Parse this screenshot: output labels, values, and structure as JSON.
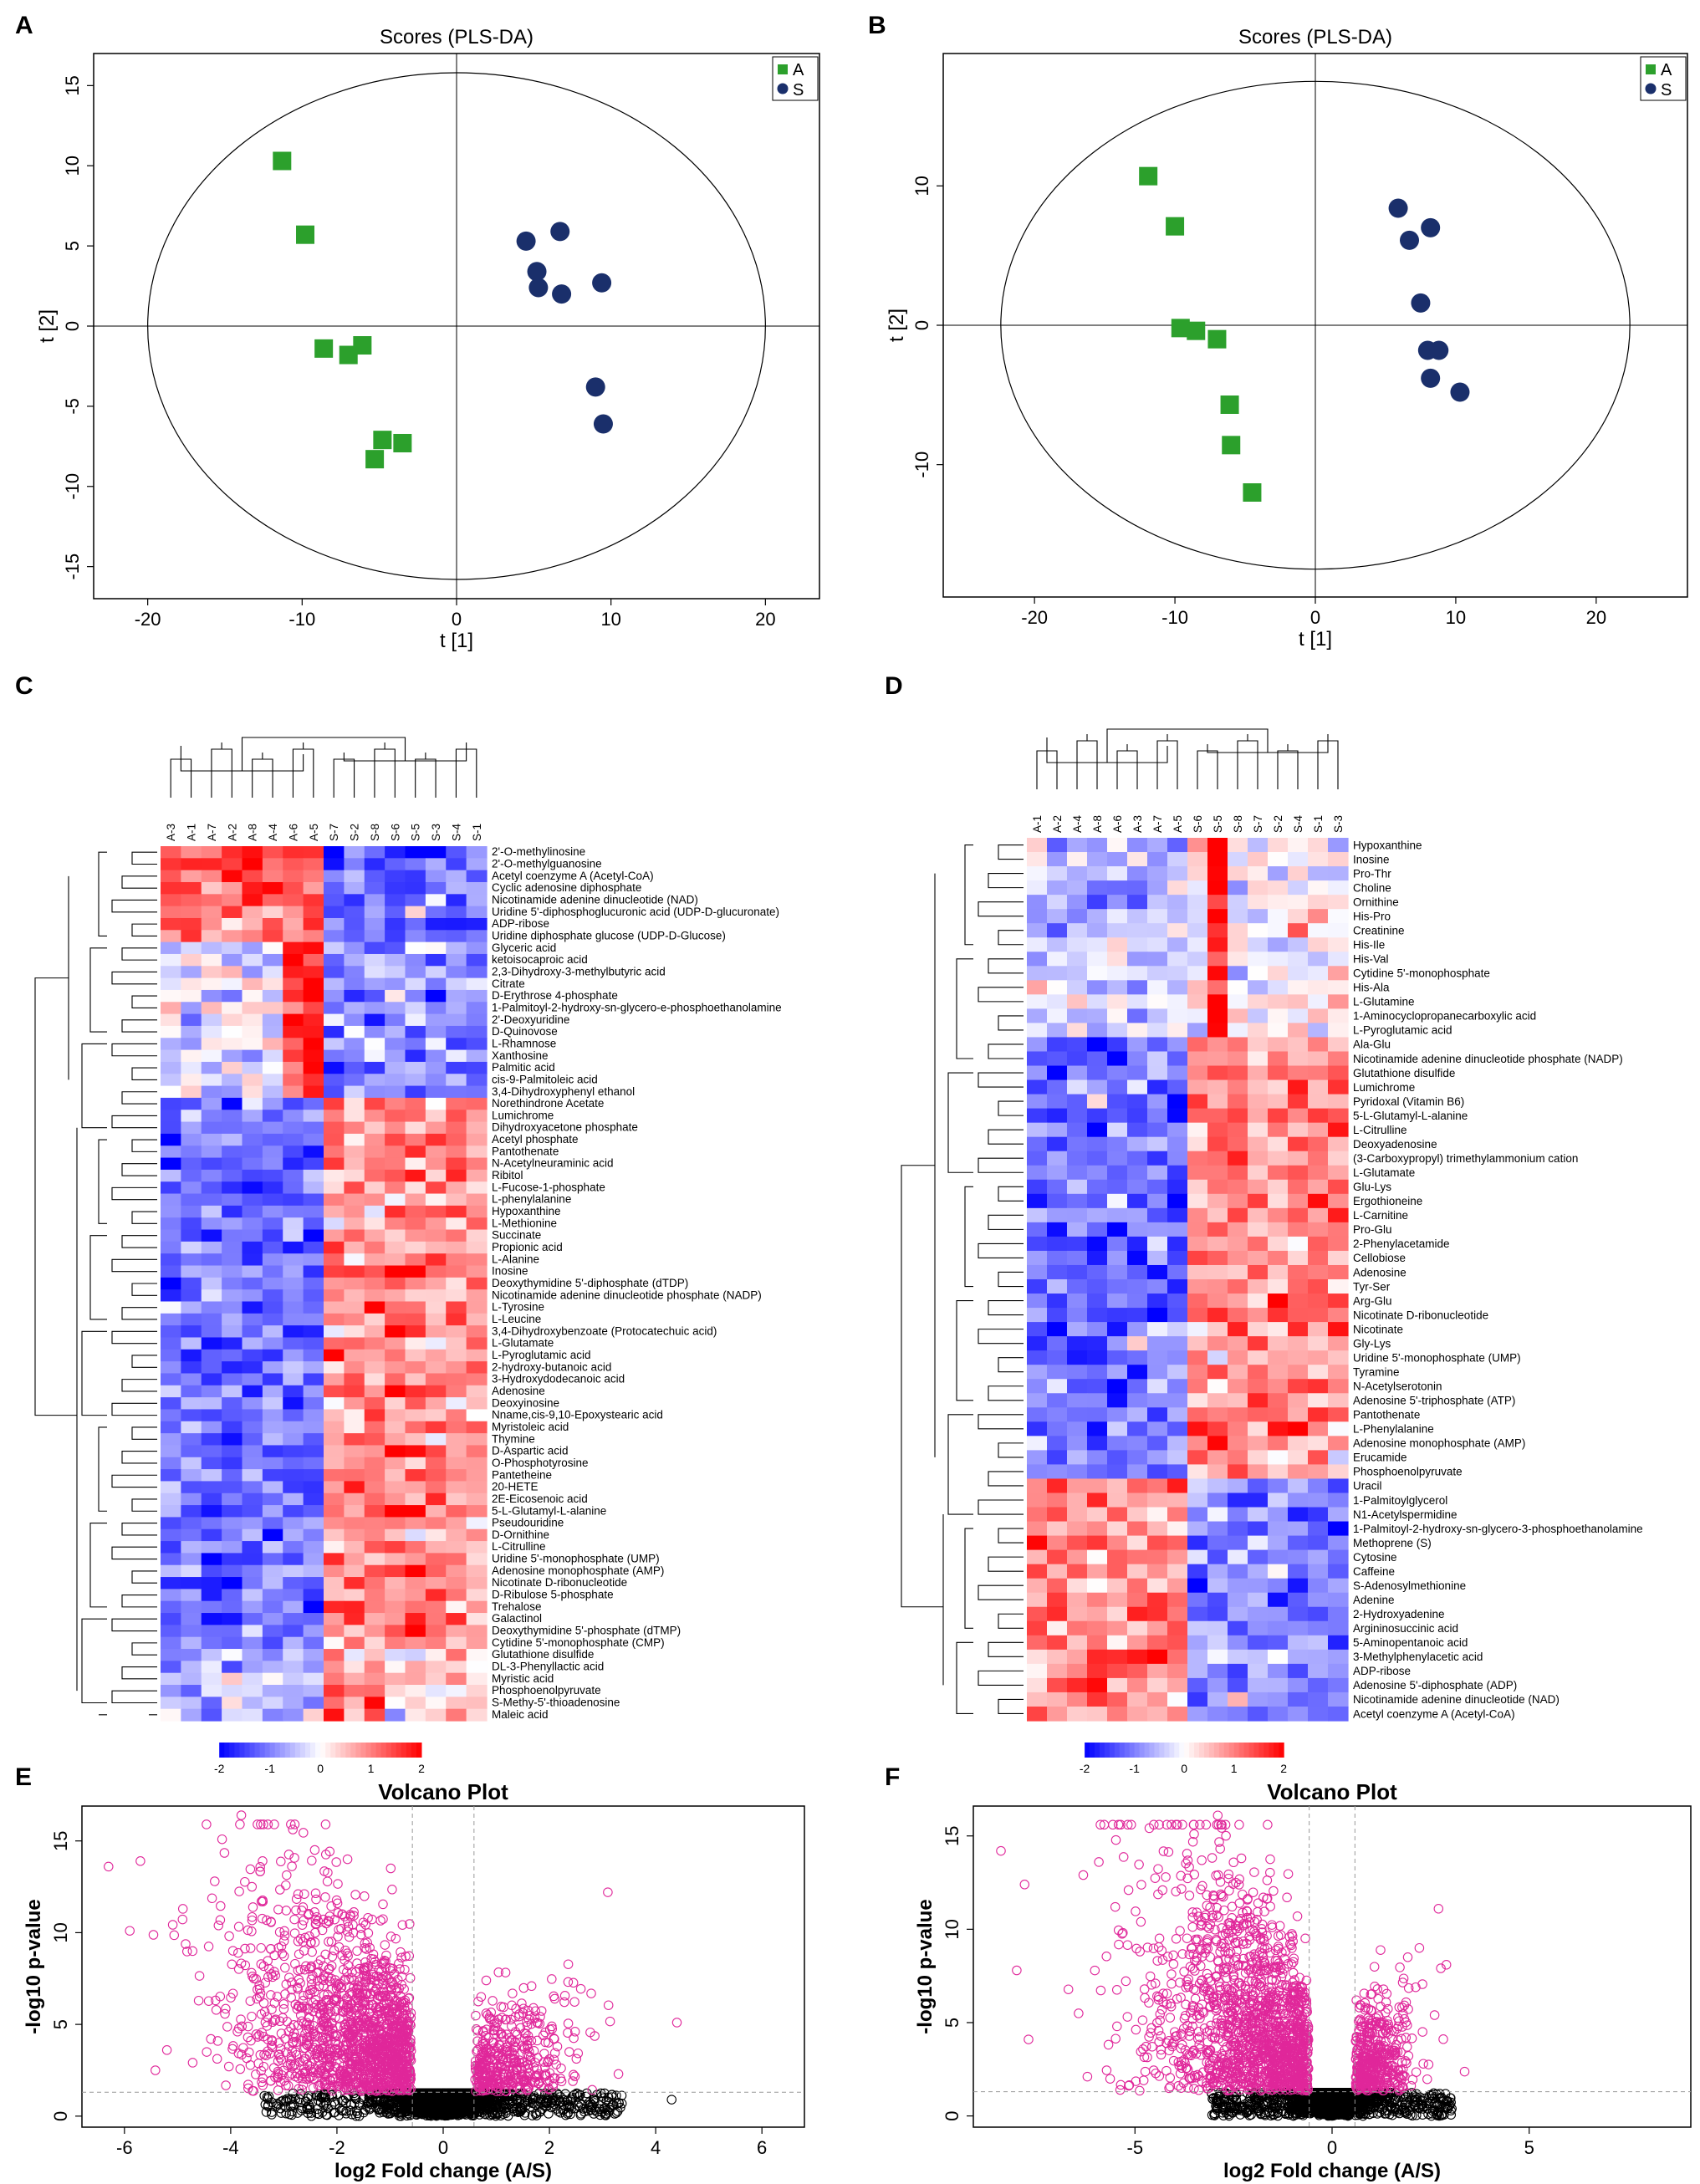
{
  "panels": {
    "A": {
      "letter": "A"
    },
    "B": {
      "letter": "B"
    },
    "C": {
      "letter": "C"
    },
    "D": {
      "letter": "D"
    },
    "E": {
      "letter": "E"
    },
    "F": {
      "letter": "F"
    }
  },
  "colors": {
    "groupA": "#2ca02c",
    "groupS": "#1a2f6b",
    "heat_low": "#0000ff",
    "heat_mid": "#ffffff",
    "heat_high": "#ff0000",
    "volcano_sig": "#e0279a",
    "volcano_ns": "#000000"
  },
  "chart_data": [
    {
      "id": "A",
      "type": "scatter",
      "title": "Scores (PLS-DA)",
      "xlabel": "t [1]",
      "ylabel": "t [2]",
      "xlim": [
        -23.5,
        23.5
      ],
      "ylim": [
        -17,
        17
      ],
      "xticks": [
        -20,
        -10,
        0,
        10,
        20
      ],
      "yticks": [
        -15,
        -10,
        -5,
        0,
        5,
        10,
        15
      ],
      "legend": [
        "A",
        "S"
      ],
      "ellipse": {
        "rx": 20,
        "ry": 15.8
      },
      "series": [
        {
          "name": "A",
          "marker": "square",
          "points": [
            [
              -11.3,
              10.3
            ],
            [
              -9.8,
              5.7
            ],
            [
              -8.6,
              -1.4
            ],
            [
              -7,
              -1.8
            ],
            [
              -6.1,
              -1.2
            ],
            [
              -4.8,
              -7.1
            ],
            [
              -3.5,
              -7.3
            ],
            [
              -5.3,
              -8.3
            ]
          ]
        },
        {
          "name": "S",
          "marker": "circle",
          "points": [
            [
              4.5,
              5.3
            ],
            [
              6.7,
              5.9
            ],
            [
              5.2,
              3.4
            ],
            [
              5.3,
              2.4
            ],
            [
              6.8,
              2
            ],
            [
              9.4,
              2.7
            ],
            [
              9,
              -3.8
            ],
            [
              9.5,
              -6.1
            ]
          ]
        }
      ]
    },
    {
      "id": "B",
      "type": "scatter",
      "title": "Scores (PLS-DA)",
      "xlabel": "t [1]",
      "ylabel": "t [2]",
      "xlim": [
        -26.5,
        26.5
      ],
      "ylim": [
        -19.5,
        19.5
      ],
      "xticks": [
        -20,
        -10,
        0,
        10,
        20
      ],
      "yticks": [
        -10,
        0,
        10
      ],
      "legend": [
        "A",
        "S"
      ],
      "ellipse": {
        "rx": 22.4,
        "ry": 17.5
      },
      "series": [
        {
          "name": "A",
          "marker": "square",
          "points": [
            [
              -11.9,
              10.7
            ],
            [
              -10,
              7.1
            ],
            [
              -9.6,
              -0.2
            ],
            [
              -8.5,
              -0.4
            ],
            [
              -7,
              -1
            ],
            [
              -6.1,
              -5.7
            ],
            [
              -6,
              -8.6
            ],
            [
              -4.5,
              -12
            ]
          ]
        },
        {
          "name": "S",
          "marker": "circle",
          "points": [
            [
              5.9,
              8.4
            ],
            [
              6.7,
              6.1
            ],
            [
              8.2,
              7
            ],
            [
              7.5,
              1.6
            ],
            [
              8,
              -1.8
            ],
            [
              8.8,
              -1.8
            ],
            [
              8.2,
              -3.8
            ],
            [
              10.3,
              -4.8
            ]
          ]
        }
      ]
    },
    {
      "id": "C",
      "type": "heatmap",
      "columns": [
        "A-3",
        "A-1",
        "A-7",
        "A-2",
        "A-8",
        "A-4",
        "A-6",
        "A-5",
        "S-7",
        "S-2",
        "S-8",
        "S-6",
        "S-5",
        "S-3",
        "S-4",
        "S-1"
      ],
      "colorbar": {
        "ticks": [
          "-2",
          "-1",
          "0",
          "1",
          "2"
        ],
        "range": [
          -2,
          2
        ]
      },
      "rows": [
        "2'-O-methylinosine",
        "2'-O-methylguanosine",
        "Acetyl coenzyme A (Acetyl-CoA)",
        "Cyclic adenosine diphosphate",
        "Nicotinamide adenine dinucleotide (NAD)",
        "Uridine 5'-diphosphoglucuronic acid (UDP-D-glucuronate)",
        "ADP-ribose",
        "Uridine diphosphate glucose (UDP-D-Glucose)",
        "Glyceric acid",
        "ketoisocaproic acid",
        "2,3-Dihydroxy-3-methylbutyric acid",
        "Citrate",
        "D-Erythrose 4-phosphate",
        "1-Palmitoyl-2-hydroxy-sn-glycero-e-phosphoethanolamine",
        "2'-Deoxyuridine",
        "D-Quinovose",
        "L-Rhamnose",
        "Xanthosine",
        "Palmitic acid",
        "cis-9-Palmitoleic acid",
        "3,4-Dihydroxyphenyl ethanol",
        "Norethindrone Acetate",
        "Lumichrome",
        "Dihydroxyacetone phosphate",
        "Acetyl phosphate",
        "Pantothenate",
        "N-Acetylneuraminic acid",
        "Ribitol",
        "L-Fucose-1-phosphate",
        "L-phenylalanine",
        "Hypoxanthine",
        "L-Methionine",
        "Succinate",
        "Propionic acid",
        "L-Alanine",
        "Inosine",
        "Deoxythymidine 5'-diphosphate (dTDP)",
        "Nicotinamide adenine dinucleotide phosphate (NADP)",
        "L-Tyrosine",
        "L-Leucine",
        "3,4-Dihydroxybenzoate (Protocatechuic acid)",
        "L-Glutamate",
        "L-Pyroglutamic acid",
        "2-hydroxy-butanoic acid",
        "3-Hydroxydodecanoic acid",
        "Adenosine",
        "Deoxyinosine",
        "Nname,cis-9,10-Epoxystearic acid",
        "Myristoleic acid",
        "Thymine",
        "D-Aspartic acid",
        "O-Phosphotyrosine",
        "Pantetheine",
        "20-HETE",
        "2E-Eicosenoic acid",
        "5-L-Glutamyl-L-alanine",
        "Pseudouridine",
        "D-Ornithine",
        "L-Citrulline",
        "Uridine 5'-monophosphate (UMP)",
        "Adenosine monophosphate (AMP)",
        "Nicotinate D-ribonucleotide",
        "D-Ribulose 5-phosphate",
        "Trehalose",
        "Galactinol",
        "Deoxythymidine 5'-phosphate (dTMP)",
        "Cytidine 5'-monophosphate (CMP)",
        "Glutathione disulfide",
        "DL-3-Phenyllactic acid",
        "Myristic acid",
        "Phosphoenolpyruvate",
        "S-Methy-5'-thioadenosine",
        "Maleic acid"
      ]
    },
    {
      "id": "D",
      "type": "heatmap",
      "columns": [
        "A-1",
        "A-2",
        "A-4",
        "A-8",
        "A-6",
        "A-3",
        "A-7",
        "A-5",
        "S-6",
        "S-5",
        "S-8",
        "S-7",
        "S-2",
        "S-4",
        "S-1",
        "S-3"
      ],
      "colorbar": {
        "ticks": [
          "-2",
          "-1",
          "0",
          "1",
          "2"
        ],
        "range": [
          -2,
          2
        ]
      },
      "rows": [
        "Hypoxanthine",
        "Inosine",
        "Pro-Thr",
        "Choline",
        "Ornithine",
        "His-Pro",
        "Creatinine",
        "His-Ile",
        "His-Val",
        "Cytidine 5'-monophosphate",
        "His-Ala",
        "L-Glutamine",
        "1-Aminocyclopropanecarboxylic acid",
        "L-Pyroglutamic acid",
        "Ala-Glu",
        "Nicotinamide adenine dinucleotide phosphate (NADP)",
        "Glutathione disulfide",
        "Lumichrome",
        "Pyridoxal (Vitamin B6)",
        "5-L-Glutamyl-L-alanine",
        "L-Citrulline",
        "Deoxyadenosine",
        "(3-Carboxypropyl) trimethylammonium cation",
        "L-Glutamate",
        "Glu-Lys",
        "Ergothioneine",
        "L-Carnitine",
        "Pro-Glu",
        "2-Phenylacetamide",
        "Cellobiose",
        "Adenosine",
        "Tyr-Ser",
        "Arg-Glu",
        "Nicotinate D-ribonucleotide",
        "Nicotinate",
        "Gly-Lys",
        "Uridine 5'-monophosphate (UMP)",
        "Tyramine",
        "N-Acetylserotonin",
        "Adenosine 5'-triphosphate (ATP)",
        "Pantothenate",
        "L-Phenylalanine",
        "Adenosine monophosphate (AMP)",
        "Erucamide",
        "Phosphoenolpyruvate",
        "Uracil",
        "1-Palmitoylglycerol",
        "N1-Acetylspermidine",
        "1-Palmitoyl-2-hydroxy-sn-glycero-3-phosphoethanolamine",
        "Methoprene (S)",
        "Cytosine",
        "Caffeine",
        "S-Adenosylmethionine",
        "Adenine",
        "2-Hydroxyadenine",
        "Argininosuccinic acid",
        "5-Aminopentanoic acid",
        "3-Methylphenylacetic acid",
        "ADP-ribose",
        "Adenosine 5'-diphosphate (ADP)",
        "Nicotinamide adenine dinucleotide (NAD)",
        "Acetyl coenzyme A (Acetyl-CoA)"
      ]
    },
    {
      "id": "E",
      "type": "scatter",
      "title": "Volcano Plot",
      "xlabel": "log2 Fold change (A/S)",
      "ylabel": "-log10 p-value",
      "xlim": [
        -6.8,
        6.8
      ],
      "ylim": [
        -0.6,
        16.9
      ],
      "xticks": [
        -6,
        -4,
        -2,
        0,
        2,
        4,
        6
      ],
      "yticks": [
        0,
        5,
        10,
        15
      ],
      "thresholds": {
        "fc": [
          -0.58,
          0.58
        ],
        "p": 1.3
      },
      "highlight_points": [
        [
          -3.8,
          16.4
        ],
        [
          -6.3,
          13.6
        ],
        [
          -5.7,
          13.9
        ],
        [
          -4.3,
          12.8
        ],
        [
          -3.4,
          13.9
        ],
        [
          -1.8,
          14
        ],
        [
          -5.9,
          10.1
        ],
        [
          -3.6,
          12.5
        ],
        [
          3.1,
          12.2
        ],
        [
          -4.9,
          11.3
        ],
        [
          4.4,
          5.1
        ],
        [
          4.3,
          0.9
        ],
        [
          2.1,
          6.4
        ],
        [
          3.3,
          2.3
        ],
        [
          -5.2,
          3.6
        ],
        [
          -2.2,
          10.5
        ]
      ]
    },
    {
      "id": "F",
      "type": "scatter",
      "title": "Volcano Plot",
      "xlabel": "log2 Fold change (A/S)",
      "ylabel": "-log10 p-value",
      "xlim": [
        -9.1,
        9.1
      ],
      "ylim": [
        -0.6,
        16.6
      ],
      "xticks": [
        -5,
        0,
        5
      ],
      "yticks": [
        0,
        5,
        10,
        15
      ],
      "thresholds": {
        "fc": [
          -0.58,
          0.58
        ],
        "p": 1.3
      },
      "highlight_points": [
        [
          -2.9,
          16.1
        ],
        [
          -8.4,
          14.2
        ],
        [
          -7.8,
          12.4
        ],
        [
          -3.5,
          15.1
        ],
        [
          -5.5,
          11.2
        ],
        [
          -4.3,
          12.1
        ],
        [
          -2.3,
          13.8
        ],
        [
          2.7,
          11.1
        ],
        [
          -7.7,
          4.1
        ],
        [
          -8,
          7.8
        ],
        [
          2.9,
          8.1
        ],
        [
          2.6,
          5.4
        ]
      ]
    }
  ]
}
